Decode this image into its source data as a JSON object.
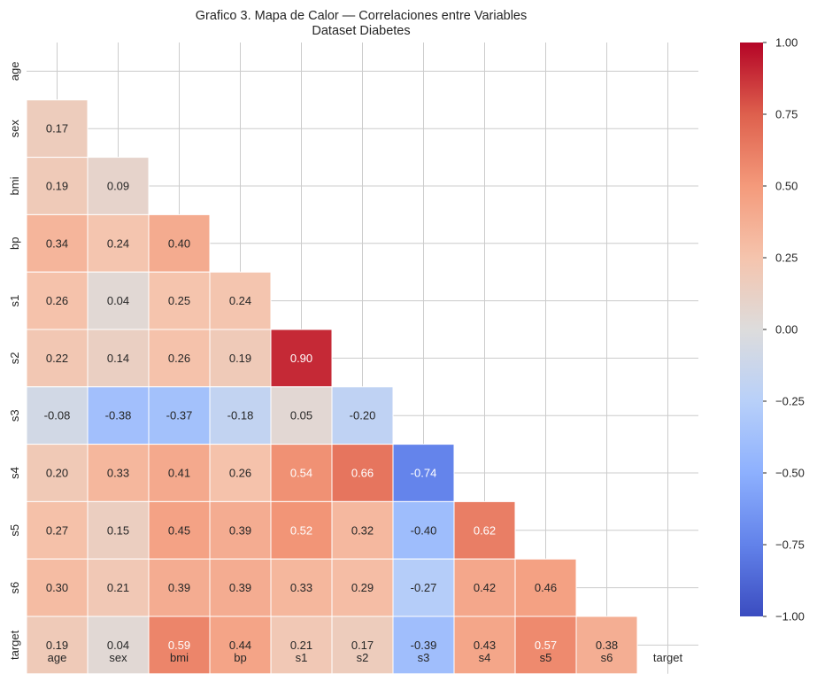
{
  "chart_data": {
    "type": "heatmap",
    "title": "Grafico 3. Mapa de Calor — Correlaciones entre Variables",
    "subtitle": "Dataset Diabetes",
    "variables": [
      "age",
      "sex",
      "bmi",
      "bp",
      "s1",
      "s2",
      "s3",
      "s4",
      "s5",
      "s6",
      "target"
    ],
    "mask": "upper-triangle-including-diagonal",
    "colormap": "coolwarm",
    "vmin": -1.0,
    "vmax": 1.0,
    "grid": true,
    "cells": [
      {
        "row": "sex",
        "col": "age",
        "value": 0.17,
        "label": "0.17"
      },
      {
        "row": "bmi",
        "col": "age",
        "value": 0.19,
        "label": "0.19"
      },
      {
        "row": "bmi",
        "col": "sex",
        "value": 0.09,
        "label": "0.09"
      },
      {
        "row": "bp",
        "col": "age",
        "value": 0.34,
        "label": "0.34"
      },
      {
        "row": "bp",
        "col": "sex",
        "value": 0.24,
        "label": "0.24"
      },
      {
        "row": "bp",
        "col": "bmi",
        "value": 0.4,
        "label": "0.40"
      },
      {
        "row": "s1",
        "col": "age",
        "value": 0.26,
        "label": "0.26"
      },
      {
        "row": "s1",
        "col": "sex",
        "value": 0.04,
        "label": "0.04"
      },
      {
        "row": "s1",
        "col": "bmi",
        "value": 0.25,
        "label": "0.25"
      },
      {
        "row": "s1",
        "col": "bp",
        "value": 0.24,
        "label": "0.24"
      },
      {
        "row": "s2",
        "col": "age",
        "value": 0.22,
        "label": "0.22"
      },
      {
        "row": "s2",
        "col": "sex",
        "value": 0.14,
        "label": "0.14"
      },
      {
        "row": "s2",
        "col": "bmi",
        "value": 0.26,
        "label": "0.26"
      },
      {
        "row": "s2",
        "col": "bp",
        "value": 0.19,
        "label": "0.19"
      },
      {
        "row": "s2",
        "col": "s1",
        "value": 0.9,
        "label": "0.90"
      },
      {
        "row": "s3",
        "col": "age",
        "value": -0.08,
        "label": "-0.08"
      },
      {
        "row": "s3",
        "col": "sex",
        "value": -0.38,
        "label": "-0.38"
      },
      {
        "row": "s3",
        "col": "bmi",
        "value": -0.37,
        "label": "-0.37"
      },
      {
        "row": "s3",
        "col": "bp",
        "value": -0.18,
        "label": "-0.18"
      },
      {
        "row": "s3",
        "col": "s1",
        "value": 0.05,
        "label": "0.05"
      },
      {
        "row": "s3",
        "col": "s2",
        "value": -0.2,
        "label": "-0.20"
      },
      {
        "row": "s4",
        "col": "age",
        "value": 0.2,
        "label": "0.20"
      },
      {
        "row": "s4",
        "col": "sex",
        "value": 0.33,
        "label": "0.33"
      },
      {
        "row": "s4",
        "col": "bmi",
        "value": 0.41,
        "label": "0.41"
      },
      {
        "row": "s4",
        "col": "bp",
        "value": 0.26,
        "label": "0.26"
      },
      {
        "row": "s4",
        "col": "s1",
        "value": 0.54,
        "label": "0.54"
      },
      {
        "row": "s4",
        "col": "s2",
        "value": 0.66,
        "label": "0.66"
      },
      {
        "row": "s4",
        "col": "s3",
        "value": -0.74,
        "label": "-0.74"
      },
      {
        "row": "s5",
        "col": "age",
        "value": 0.27,
        "label": "0.27"
      },
      {
        "row": "s5",
        "col": "sex",
        "value": 0.15,
        "label": "0.15"
      },
      {
        "row": "s5",
        "col": "bmi",
        "value": 0.45,
        "label": "0.45"
      },
      {
        "row": "s5",
        "col": "bp",
        "value": 0.39,
        "label": "0.39"
      },
      {
        "row": "s5",
        "col": "s1",
        "value": 0.52,
        "label": "0.52"
      },
      {
        "row": "s5",
        "col": "s2",
        "value": 0.32,
        "label": "0.32"
      },
      {
        "row": "s5",
        "col": "s3",
        "value": -0.4,
        "label": "-0.40"
      },
      {
        "row": "s5",
        "col": "s4",
        "value": 0.62,
        "label": "0.62"
      },
      {
        "row": "s6",
        "col": "age",
        "value": 0.3,
        "label": "0.30"
      },
      {
        "row": "s6",
        "col": "sex",
        "value": 0.21,
        "label": "0.21"
      },
      {
        "row": "s6",
        "col": "bmi",
        "value": 0.39,
        "label": "0.39"
      },
      {
        "row": "s6",
        "col": "bp",
        "value": 0.39,
        "label": "0.39"
      },
      {
        "row": "s6",
        "col": "s1",
        "value": 0.33,
        "label": "0.33"
      },
      {
        "row": "s6",
        "col": "s2",
        "value": 0.29,
        "label": "0.29"
      },
      {
        "row": "s6",
        "col": "s3",
        "value": -0.27,
        "label": "-0.27"
      },
      {
        "row": "s6",
        "col": "s4",
        "value": 0.42,
        "label": "0.42"
      },
      {
        "row": "s6",
        "col": "s5",
        "value": 0.46,
        "label": "0.46"
      },
      {
        "row": "target",
        "col": "age",
        "value": 0.19,
        "label": "0.19"
      },
      {
        "row": "target",
        "col": "sex",
        "value": 0.04,
        "label": "0.04"
      },
      {
        "row": "target",
        "col": "bmi",
        "value": 0.59,
        "label": "0.59"
      },
      {
        "row": "target",
        "col": "bp",
        "value": 0.44,
        "label": "0.44"
      },
      {
        "row": "target",
        "col": "s1",
        "value": 0.21,
        "label": "0.21"
      },
      {
        "row": "target",
        "col": "s2",
        "value": 0.17,
        "label": "0.17"
      },
      {
        "row": "target",
        "col": "s3",
        "value": -0.39,
        "label": "-0.39"
      },
      {
        "row": "target",
        "col": "s4",
        "value": 0.43,
        "label": "0.43"
      },
      {
        "row": "target",
        "col": "s5",
        "value": 0.57,
        "label": "0.57"
      },
      {
        "row": "target",
        "col": "s6",
        "value": 0.38,
        "label": "0.38"
      }
    ],
    "colorbar": {
      "ticks": [
        1.0,
        0.75,
        0.5,
        0.25,
        0.0,
        -0.25,
        -0.5,
        -0.75,
        -1.0
      ],
      "tick_labels": [
        "1.00",
        "0.75",
        "0.50",
        "0.25",
        "0.00",
        "−0.25",
        "−0.50",
        "−0.75",
        "−1.00"
      ]
    },
    "colors": {
      "text_dark": "#262626",
      "text_light": "#ffffff",
      "grid": "#cccccc",
      "cell_border": "#ffffff"
    }
  }
}
